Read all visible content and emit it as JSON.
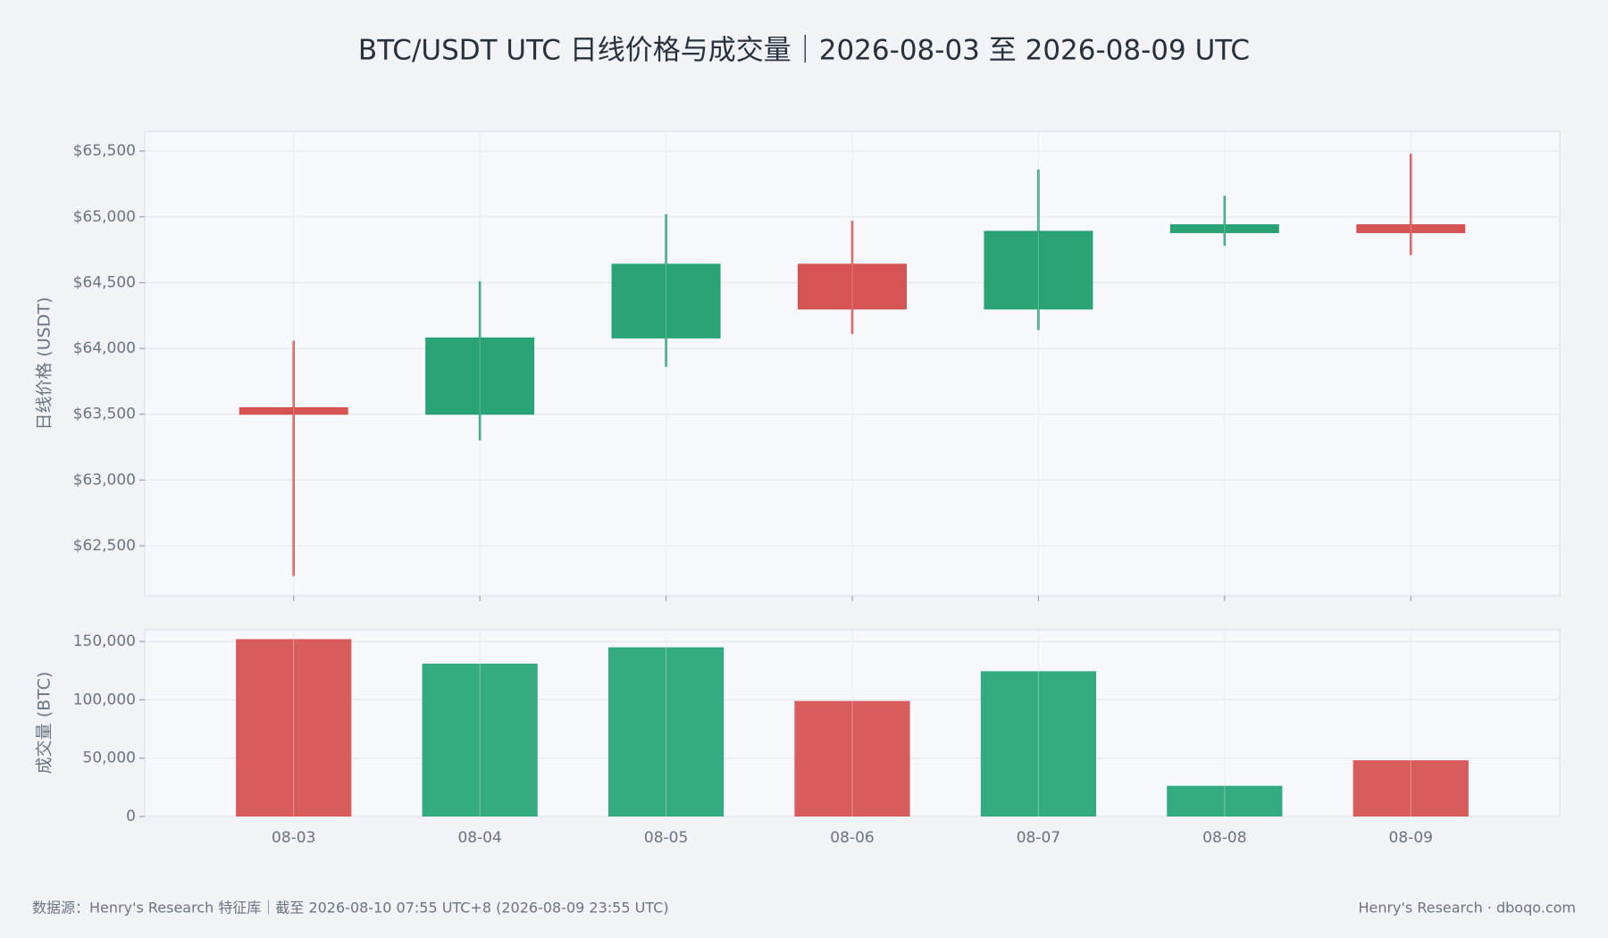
{
  "chart_data": [
    {
      "type": "candlestick",
      "title": "BTC/USDT UTC 日线价格与成交量｜2026-08-03 至 2026-08-09 UTC",
      "y_label": "日线价格 (USDT)",
      "open": [
        63550,
        63500,
        64080,
        64640,
        64300,
        64880,
        64940
      ],
      "high": [
        64060,
        64510,
        65020,
        64970,
        65360,
        65160,
        65480
      ],
      "low": [
        62270,
        63300,
        63860,
        64110,
        64140,
        64780,
        64710
      ],
      "close": [
        63500,
        64080,
        64640,
        64300,
        64890,
        64940,
        64880
      ],
      "up_color": "#1f9e6e",
      "down_color": "#d44b4b",
      "ylim": [
        62120,
        65650
      ],
      "yticks": [
        {
          "value": 62500,
          "label": "$62,500"
        },
        {
          "value": 63000,
          "label": "$63,000"
        },
        {
          "value": 63500,
          "label": "$63,500"
        },
        {
          "value": 64000,
          "label": "$64,000"
        },
        {
          "value": 64500,
          "label": "$64,500"
        },
        {
          "value": 65000,
          "label": "$65,000"
        },
        {
          "value": 65500,
          "label": "$65,500"
        }
      ],
      "grid": true
    },
    {
      "type": "bar",
      "y_label": "成交量 (BTC)",
      "categories": [
        "08-03",
        "08-04",
        "08-05",
        "08-06",
        "08-07",
        "08-08",
        "08-09"
      ],
      "values": [
        152000,
        131000,
        145000,
        99000,
        124500,
        26300,
        48200
      ],
      "colors": [
        "#d95c5c",
        "#33aa80",
        "#33aa80",
        "#d95c5c",
        "#33aa80",
        "#33aa80",
        "#d95c5c"
      ],
      "ylim": [
        0,
        160000
      ],
      "yticks": [
        0,
        {
          "value": 50000,
          "label": "50,000"
        },
        {
          "value": 100000,
          "label": "100,000"
        },
        {
          "value": 150000,
          "label": "150,000"
        }
      ],
      "grid": true
    }
  ],
  "footer": {
    "source": "数据源：Henry's Research 特征库｜截至 2026-08-10 07:55 UTC+8 (2026-08-09 23:55 UTC)",
    "credit": "Henry's Research · dboqo.com"
  }
}
